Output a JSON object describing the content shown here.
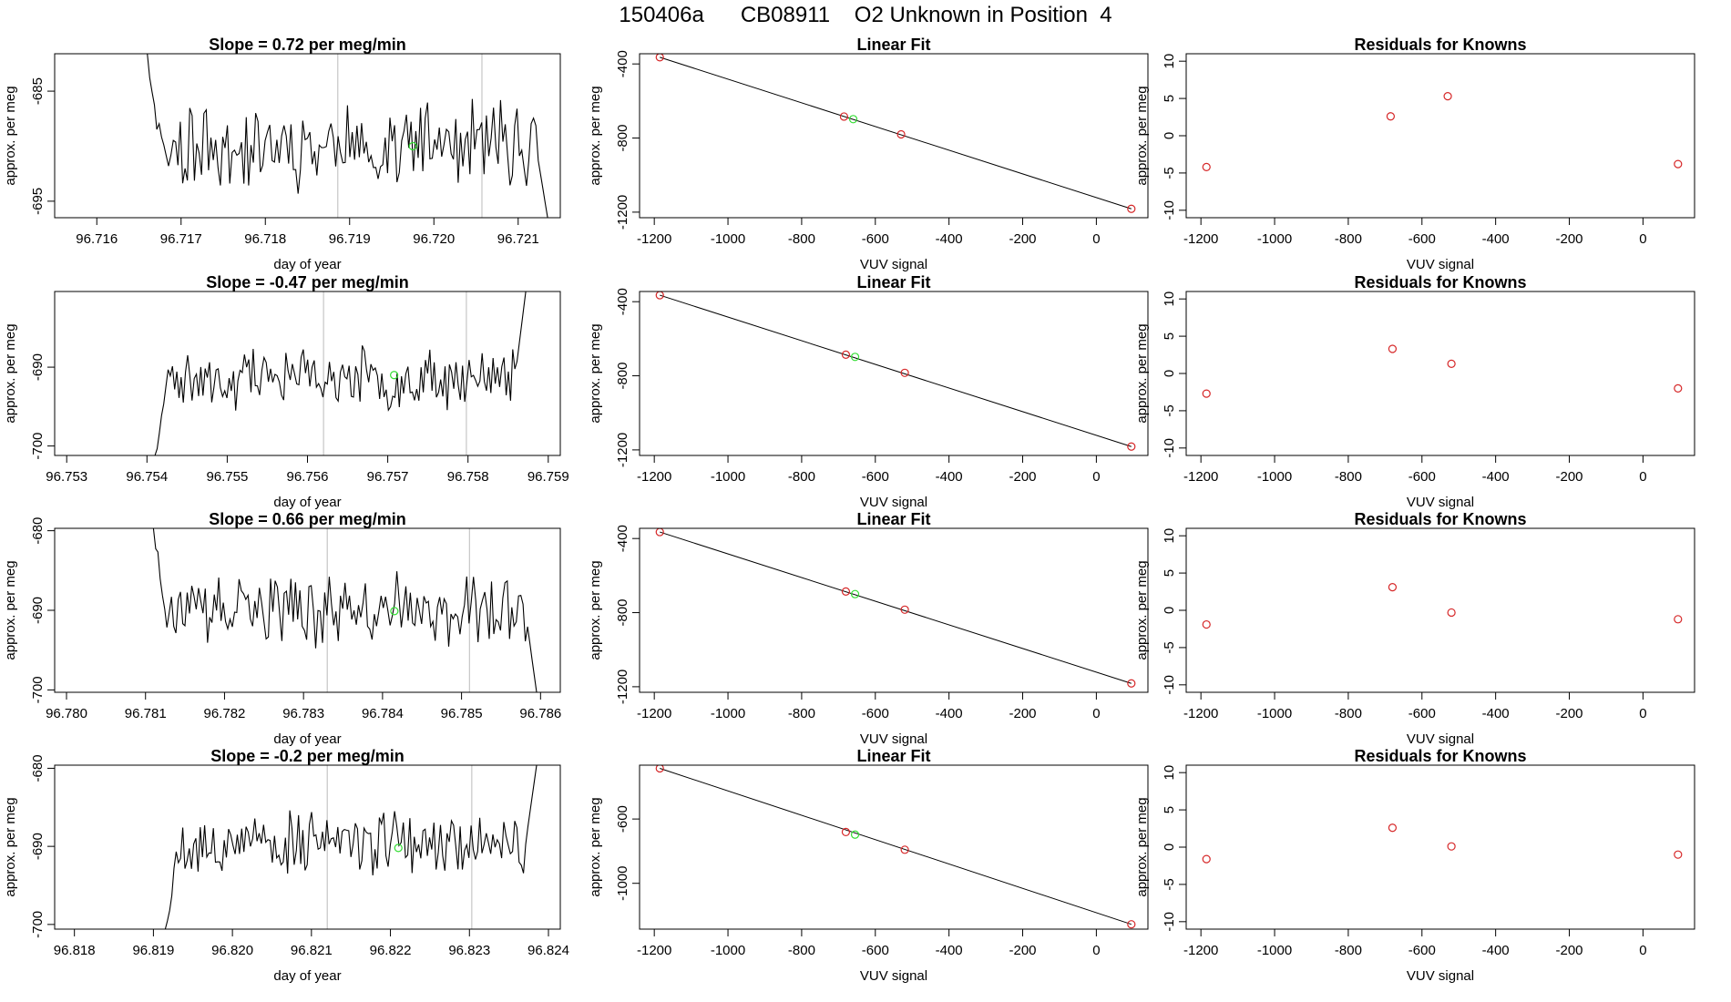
{
  "page_title": "150406a      CB08911    O2 Unknown in Position  4",
  "colors": {
    "trace": "#000000",
    "known": "#d62728",
    "unknown": "#33dd33",
    "marker_line": "#bbbbbb",
    "fit_line": "#000000"
  },
  "chart_data": [
    {
      "type": "line",
      "title": "Slope =  0.72  per meg/min",
      "xlabel": "day of year",
      "ylabel": "approx. per meg",
      "xlim": [
        96.7155,
        96.7215
      ],
      "ylim": [
        -696.5,
        -681.6
      ],
      "xticks": [
        "96.716",
        "96.717",
        "96.718",
        "96.719",
        "96.720",
        "96.721"
      ],
      "xtick_values": [
        96.716,
        96.717,
        96.718,
        96.719,
        96.72,
        96.721
      ],
      "yticks": [
        "-695",
        "-685"
      ],
      "ytick_values": [
        -695,
        -685
      ],
      "markers": [
        96.71886,
        96.72057
      ],
      "unknown_point": {
        "x": 96.71975,
        "y": -690.0
      },
      "trace": {
        "x_start": 96.7166,
        "x_end": 96.72135,
        "y_start": -681.6,
        "y_end": -696.5,
        "center": -690.0,
        "spread": 3.0,
        "seed": 11
      }
    },
    {
      "type": "scatter",
      "title": "Linear Fit",
      "xlabel": "VUV signal",
      "ylabel": "approx. per meg",
      "xlim": [
        -1240,
        140
      ],
      "ylim": [
        -1230,
        -345
      ],
      "xticks": [
        "-1200",
        "-1000",
        "-800",
        "-600",
        "-400",
        "-200",
        "0"
      ],
      "xtick_values": [
        -1200,
        -1000,
        -800,
        -600,
        -400,
        -200,
        0
      ],
      "yticks": [
        "-400",
        "-800",
        "-1200"
      ],
      "ytick_values": [
        -400,
        -800,
        -1200
      ],
      "knowns": {
        "x": [
          -1185,
          -685,
          -530,
          95
        ],
        "y": [
          -364,
          -684,
          -780,
          -1182
        ]
      },
      "unknown_point": {
        "x": -660,
        "y": -698
      },
      "fit_line": {
        "x": [
          -1185,
          95
        ],
        "y": [
          -364,
          -1182
        ]
      }
    },
    {
      "type": "scatter",
      "title": "Residuals for Knowns",
      "xlabel": "VUV signal",
      "ylabel": "approx. per meg",
      "xlim": [
        -1240,
        140
      ],
      "ylim": [
        -11,
        11
      ],
      "xticks": [
        "-1200",
        "-1000",
        "-800",
        "-600",
        "-400",
        "-200",
        "0"
      ],
      "xtick_values": [
        -1200,
        -1000,
        -800,
        -600,
        -400,
        -200,
        0
      ],
      "yticks": [
        "10",
        "5",
        "0",
        "-5",
        "-10"
      ],
      "ytick_values": [
        10,
        5,
        0,
        -5,
        -10
      ],
      "knowns": {
        "x": [
          -1185,
          -685,
          -530,
          95
        ],
        "y": [
          -4.2,
          2.6,
          5.3,
          -3.8
        ]
      }
    },
    {
      "type": "line",
      "title": "Slope =  -0.47  per meg/min",
      "xlabel": "day of year",
      "ylabel": "approx. per meg",
      "xlim": [
        96.75285,
        96.75915
      ],
      "ylim": [
        -701.2,
        -680.4
      ],
      "xticks": [
        "96.753",
        "96.754",
        "96.755",
        "96.756",
        "96.757",
        "96.758",
        "96.759"
      ],
      "xtick_values": [
        96.753,
        96.754,
        96.755,
        96.756,
        96.757,
        96.758,
        96.759
      ],
      "yticks": [
        "-690",
        "-700"
      ],
      "ytick_values": [
        -690,
        -700
      ],
      "markers": [
        96.7562,
        96.75798
      ],
      "unknown_point": {
        "x": 96.75708,
        "y": -691.0
      },
      "trace": {
        "x_start": 96.7541,
        "x_end": 96.75872,
        "y_start": -701.2,
        "y_end": -680.4,
        "center": -691.5,
        "spread": 3.0,
        "seed": 23
      }
    },
    {
      "type": "scatter",
      "title": "Linear Fit",
      "xlabel": "VUV signal",
      "ylabel": "approx. per meg",
      "xlim": [
        -1240,
        140
      ],
      "ylim": [
        -1230,
        -345
      ],
      "xticks": [
        "-1200",
        "-1000",
        "-800",
        "-600",
        "-400",
        "-200",
        "0"
      ],
      "xtick_values": [
        -1200,
        -1000,
        -800,
        -600,
        -400,
        -200,
        0
      ],
      "yticks": [
        "-400",
        "-800",
        "-1200"
      ],
      "ytick_values": [
        -400,
        -800,
        -1200
      ],
      "knowns": {
        "x": [
          -1185,
          -680,
          -520,
          95
        ],
        "y": [
          -365,
          -686,
          -784,
          -1182
        ]
      },
      "unknown_point": {
        "x": -655,
        "y": -698
      },
      "fit_line": {
        "x": [
          -1185,
          95
        ],
        "y": [
          -365,
          -1182
        ]
      }
    },
    {
      "type": "scatter",
      "title": "Residuals for Knowns",
      "xlabel": "VUV signal",
      "ylabel": "approx. per meg",
      "xlim": [
        -1240,
        140
      ],
      "ylim": [
        -11,
        11
      ],
      "xticks": [
        "-1200",
        "-1000",
        "-800",
        "-600",
        "-400",
        "-200",
        "0"
      ],
      "xtick_values": [
        -1200,
        -1000,
        -800,
        -600,
        -400,
        -200,
        0
      ],
      "yticks": [
        "10",
        "5",
        "0",
        "-5",
        "-10"
      ],
      "ytick_values": [
        10,
        5,
        0,
        -5,
        -10
      ],
      "knowns": {
        "x": [
          -1185,
          -680,
          -520,
          95
        ],
        "y": [
          -2.7,
          3.3,
          1.3,
          -2.0
        ]
      }
    },
    {
      "type": "line",
      "title": "Slope =  0.66  per meg/min",
      "xlabel": "day of year",
      "ylabel": "approx. per meg",
      "xlim": [
        96.77985,
        96.78625
      ],
      "ylim": [
        -700.3,
        -679.7
      ],
      "xticks": [
        "96.780",
        "96.781",
        "96.782",
        "96.783",
        "96.784",
        "96.785",
        "96.786"
      ],
      "xtick_values": [
        96.78,
        96.781,
        96.782,
        96.783,
        96.784,
        96.785,
        96.786
      ],
      "yticks": [
        "-680",
        "-690",
        "-700"
      ],
      "ytick_values": [
        -680,
        -690,
        -700
      ],
      "markers": [
        96.7833,
        96.7851
      ],
      "unknown_point": {
        "x": 96.78415,
        "y": -690.1
      },
      "trace": {
        "x_start": 96.7811,
        "x_end": 96.78595,
        "y_start": -679.7,
        "y_end": -700.3,
        "center": -690.0,
        "spread": 3.4,
        "seed": 37
      }
    },
    {
      "type": "scatter",
      "title": "Linear Fit",
      "xlabel": "VUV signal",
      "ylabel": "approx. per meg",
      "xlim": [
        -1240,
        140
      ],
      "ylim": [
        -1230,
        -345
      ],
      "xticks": [
        "-1200",
        "-1000",
        "-800",
        "-600",
        "-400",
        "-200",
        "0"
      ],
      "xtick_values": [
        -1200,
        -1000,
        -800,
        -600,
        -400,
        -200,
        0
      ],
      "yticks": [
        "-400",
        "-800",
        "-1200"
      ],
      "ytick_values": [
        -400,
        -800,
        -1200
      ],
      "knowns": {
        "x": [
          -1185,
          -680,
          -520,
          95
        ],
        "y": [
          -365,
          -686,
          -784,
          -1182
        ]
      },
      "unknown_point": {
        "x": -655,
        "y": -700
      },
      "fit_line": {
        "x": [
          -1185,
          95
        ],
        "y": [
          -365,
          -1182
        ]
      }
    },
    {
      "type": "scatter",
      "title": "Residuals for Knowns",
      "xlabel": "VUV signal",
      "ylabel": "approx. per meg",
      "xlim": [
        -1240,
        140
      ],
      "ylim": [
        -11,
        11
      ],
      "xticks": [
        "-1200",
        "-1000",
        "-800",
        "-600",
        "-400",
        "-200",
        "0"
      ],
      "xtick_values": [
        -1200,
        -1000,
        -800,
        -600,
        -400,
        -200,
        0
      ],
      "yticks": [
        "10",
        "5",
        "0",
        "-5",
        "-10"
      ],
      "ytick_values": [
        10,
        5,
        0,
        -5,
        -10
      ],
      "knowns": {
        "x": [
          -1185,
          -680,
          -520,
          95
        ],
        "y": [
          -1.9,
          3.1,
          -0.3,
          -1.2
        ]
      }
    },
    {
      "type": "line",
      "title": "Slope =  -0.2  per meg/min",
      "xlabel": "day of year",
      "ylabel": "approx. per meg",
      "xlim": [
        96.81775,
        96.82415
      ],
      "ylim": [
        -700.6,
        -679.6
      ],
      "xticks": [
        "96.818",
        "96.819",
        "96.820",
        "96.821",
        "96.822",
        "96.823",
        "96.824"
      ],
      "xtick_values": [
        96.818,
        96.819,
        96.82,
        96.821,
        96.822,
        96.823,
        96.824
      ],
      "yticks": [
        "-680",
        "-690",
        "-700"
      ],
      "ytick_values": [
        -680,
        -690,
        -700
      ],
      "markers": [
        96.8212,
        96.82303
      ],
      "unknown_point": {
        "x": 96.8221,
        "y": -690.2
      },
      "trace": {
        "x_start": 96.81915,
        "x_end": 96.82385,
        "y_start": -700.6,
        "y_end": -679.6,
        "center": -689.5,
        "spread": 3.2,
        "seed": 53
      }
    },
    {
      "type": "scatter",
      "title": "Linear Fit",
      "xlabel": "VUV signal",
      "ylabel": "approx. per meg",
      "xlim": [
        -1240,
        140
      ],
      "ylim": [
        -1285,
        -265
      ],
      "xticks": [
        "-1200",
        "-1000",
        "-800",
        "-600",
        "-400",
        "-200",
        "0"
      ],
      "xtick_values": [
        -1200,
        -1000,
        -800,
        -600,
        -400,
        -200,
        0
      ],
      "yticks": [
        "-600",
        "-1000"
      ],
      "ytick_values": [
        -600,
        -1000
      ],
      "knowns": {
        "x": [
          -1185,
          -680,
          -520,
          95
        ],
        "y": [
          -285,
          -681,
          -791,
          -1255
        ]
      },
      "unknown_point": {
        "x": -655,
        "y": -697
      },
      "fit_line": {
        "x": [
          -1185,
          95
        ],
        "y": [
          -285,
          -1255
        ]
      }
    },
    {
      "type": "scatter",
      "title": "Residuals for Knowns",
      "xlabel": "VUV signal",
      "ylabel": "approx. per meg",
      "xlim": [
        -1240,
        140
      ],
      "ylim": [
        -11,
        11
      ],
      "xticks": [
        "-1200",
        "-1000",
        "-800",
        "-600",
        "-400",
        "-200",
        "0"
      ],
      "xtick_values": [
        -1200,
        -1000,
        -800,
        -600,
        -400,
        -200,
        0
      ],
      "yticks": [
        "10",
        "5",
        "0",
        "-5",
        "-10"
      ],
      "ytick_values": [
        10,
        5,
        0,
        -5,
        -10
      ],
      "knowns": {
        "x": [
          -1185,
          -680,
          -520,
          95
        ],
        "y": [
          -1.6,
          2.6,
          0.1,
          -1.0
        ]
      }
    }
  ]
}
